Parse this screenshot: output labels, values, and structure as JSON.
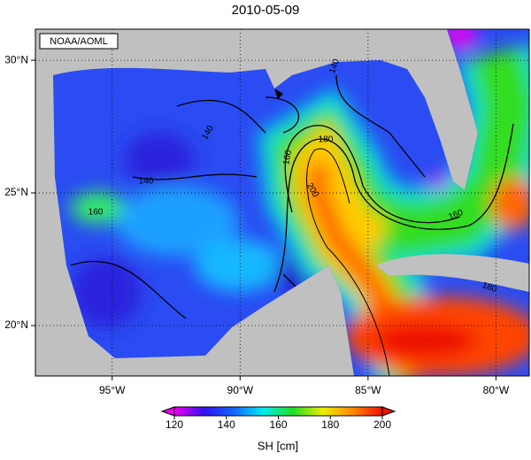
{
  "title": "2010-05-09",
  "credit": "NOAA/AOML",
  "map": {
    "xlim": [
      -98,
      -78.7
    ],
    "ylim": [
      18.1,
      31.17
    ],
    "grid": true,
    "xticks": [
      {
        "value": -95,
        "label": "95°W"
      },
      {
        "value": -90,
        "label": "90°W"
      },
      {
        "value": -85,
        "label": "85°W"
      },
      {
        "value": -80,
        "label": "80°W"
      }
    ],
    "yticks": [
      {
        "value": 30,
        "label": "30°N"
      },
      {
        "value": 25,
        "label": "25°N"
      },
      {
        "value": 20,
        "label": "20°N"
      }
    ],
    "contour_labels": [
      "140",
      "140",
      "140",
      "160",
      "180",
      "160",
      "200",
      "160",
      "180"
    ]
  },
  "colorbar": {
    "label": "SH [cm]",
    "range": [
      120,
      200
    ],
    "ticks": [
      120,
      140,
      160,
      180,
      200
    ],
    "colors": [
      "#ee00ee",
      "#3311ee",
      "#1166ff",
      "#00eeee",
      "#22dd22",
      "#eeee00",
      "#ff8800",
      "#ee1100"
    ]
  }
}
